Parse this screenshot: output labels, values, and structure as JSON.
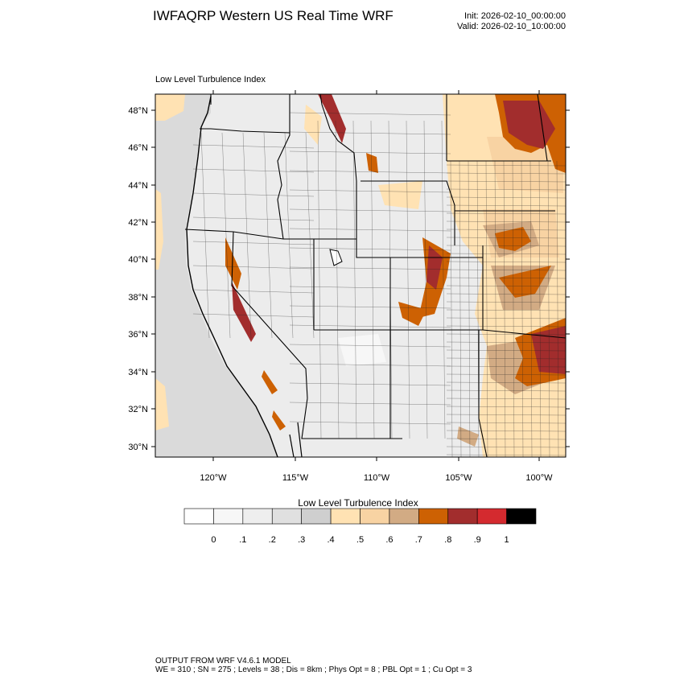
{
  "title": "IWFAQRP Western US Real Time WRF",
  "init_text": "Init: 2026-02-10_00:00:00",
  "valid_text": "Valid: 2026-02-10_10:00:00",
  "panel_label": "Low Level Turbulence Index",
  "map": {
    "field": "Low Level Turbulence Index",
    "lat_range": [
      29.5,
      48.8
    ],
    "lon_range": [
      -123.8,
      -98.2
    ],
    "lat_ticks": [
      "30°N",
      "32°N",
      "34°N",
      "36°N",
      "38°N",
      "40°N",
      "42°N",
      "44°N",
      "46°N",
      "48°N"
    ],
    "lon_ticks": [
      "120°W",
      "115°W",
      "110°W",
      "105°W",
      "100°W"
    ]
  },
  "colorbar": {
    "title": "Low Level Turbulence Index",
    "colors": [
      "#ffffff",
      "#f7f7f7",
      "#eeeeee",
      "#e0e0e0",
      "#cfcfcf",
      "#ffe2b3",
      "#f8d3a3",
      "#d2ab84",
      "#cd6103",
      "#a22d2d",
      "#d42a2f",
      "#000000"
    ],
    "labels": [
      "0",
      ".1",
      ".2",
      ".3",
      ".4",
      ".5",
      ".6",
      ".7",
      ".8",
      ".9",
      "1"
    ]
  },
  "footer": {
    "line1": "OUTPUT FROM WRF V4.6.1 MODEL",
    "line2": "WE = 310 ; SN = 275 ; Levels = 38 ; Dis = 8km ; Phys Opt = 8 ; PBL Opt = 1 ; Cu Opt = 3"
  }
}
